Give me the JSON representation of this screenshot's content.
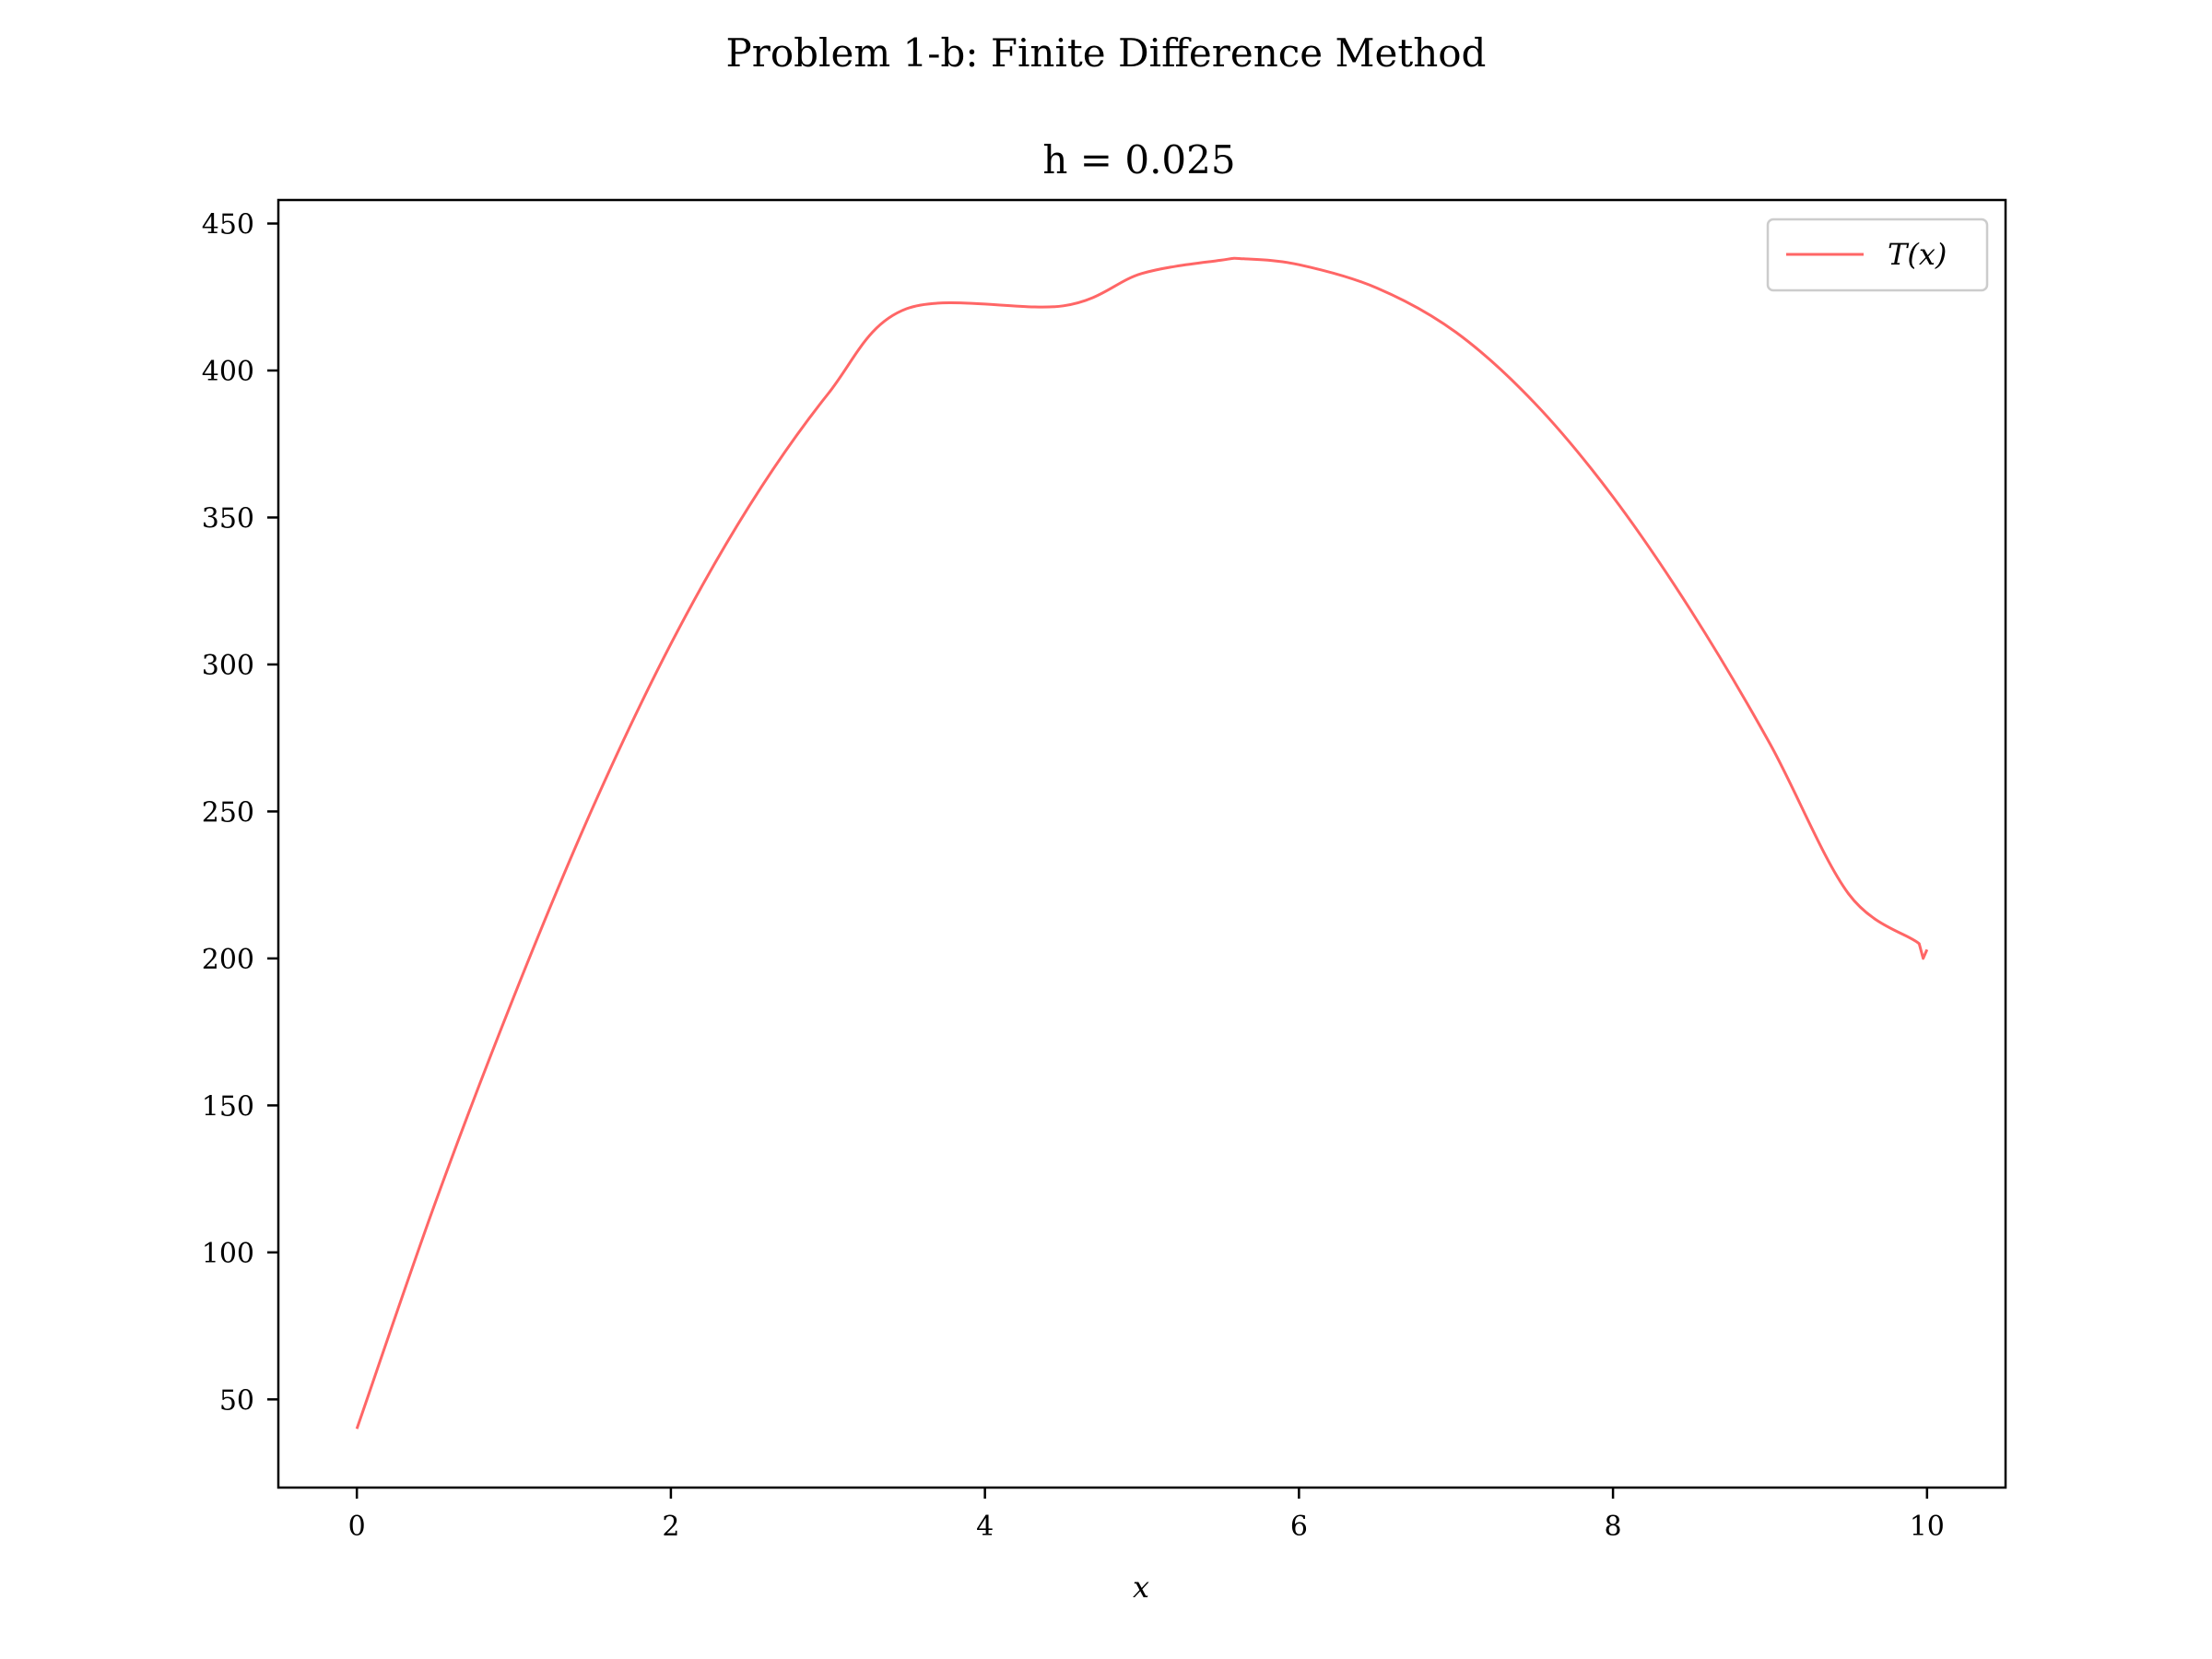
{
  "figure": {
    "suptitle": "Problem 1-b: Finite Difference Method",
    "title": "h = 0.025"
  },
  "chart_data": {
    "type": "line",
    "title": "h = 0.025",
    "suptitle": "Problem 1-b: Finite Difference Method",
    "xlabel": "x",
    "ylabel": "",
    "xlim": [
      -0.5,
      10.5
    ],
    "ylim": [
      20,
      458
    ],
    "xticks": [
      0,
      2,
      4,
      6,
      8,
      10
    ],
    "yticks": [
      50,
      100,
      150,
      200,
      250,
      300,
      350,
      400,
      450
    ],
    "grid": false,
    "legend": {
      "position": "top-right",
      "entries": [
        "T(x)"
      ]
    },
    "series": [
      {
        "name": "T(x)",
        "color": "#ff6666",
        "x": [
          0,
          0.5,
          1,
          1.5,
          2,
          2.5,
          3,
          3.5,
          4,
          4.5,
          5,
          5.5,
          5.65,
          6,
          6.5,
          7,
          7.5,
          8,
          8.5,
          9,
          9.5,
          9.95,
          9.975,
          10
        ],
        "y": [
          40,
          117,
          187,
          251,
          307,
          354,
          392,
          421,
          405,
          422,
          433,
          437.5,
          438,
          436,
          428,
          413,
          389,
          357,
          318,
          273,
          222,
          205,
          200,
          203
        ]
      }
    ]
  }
}
